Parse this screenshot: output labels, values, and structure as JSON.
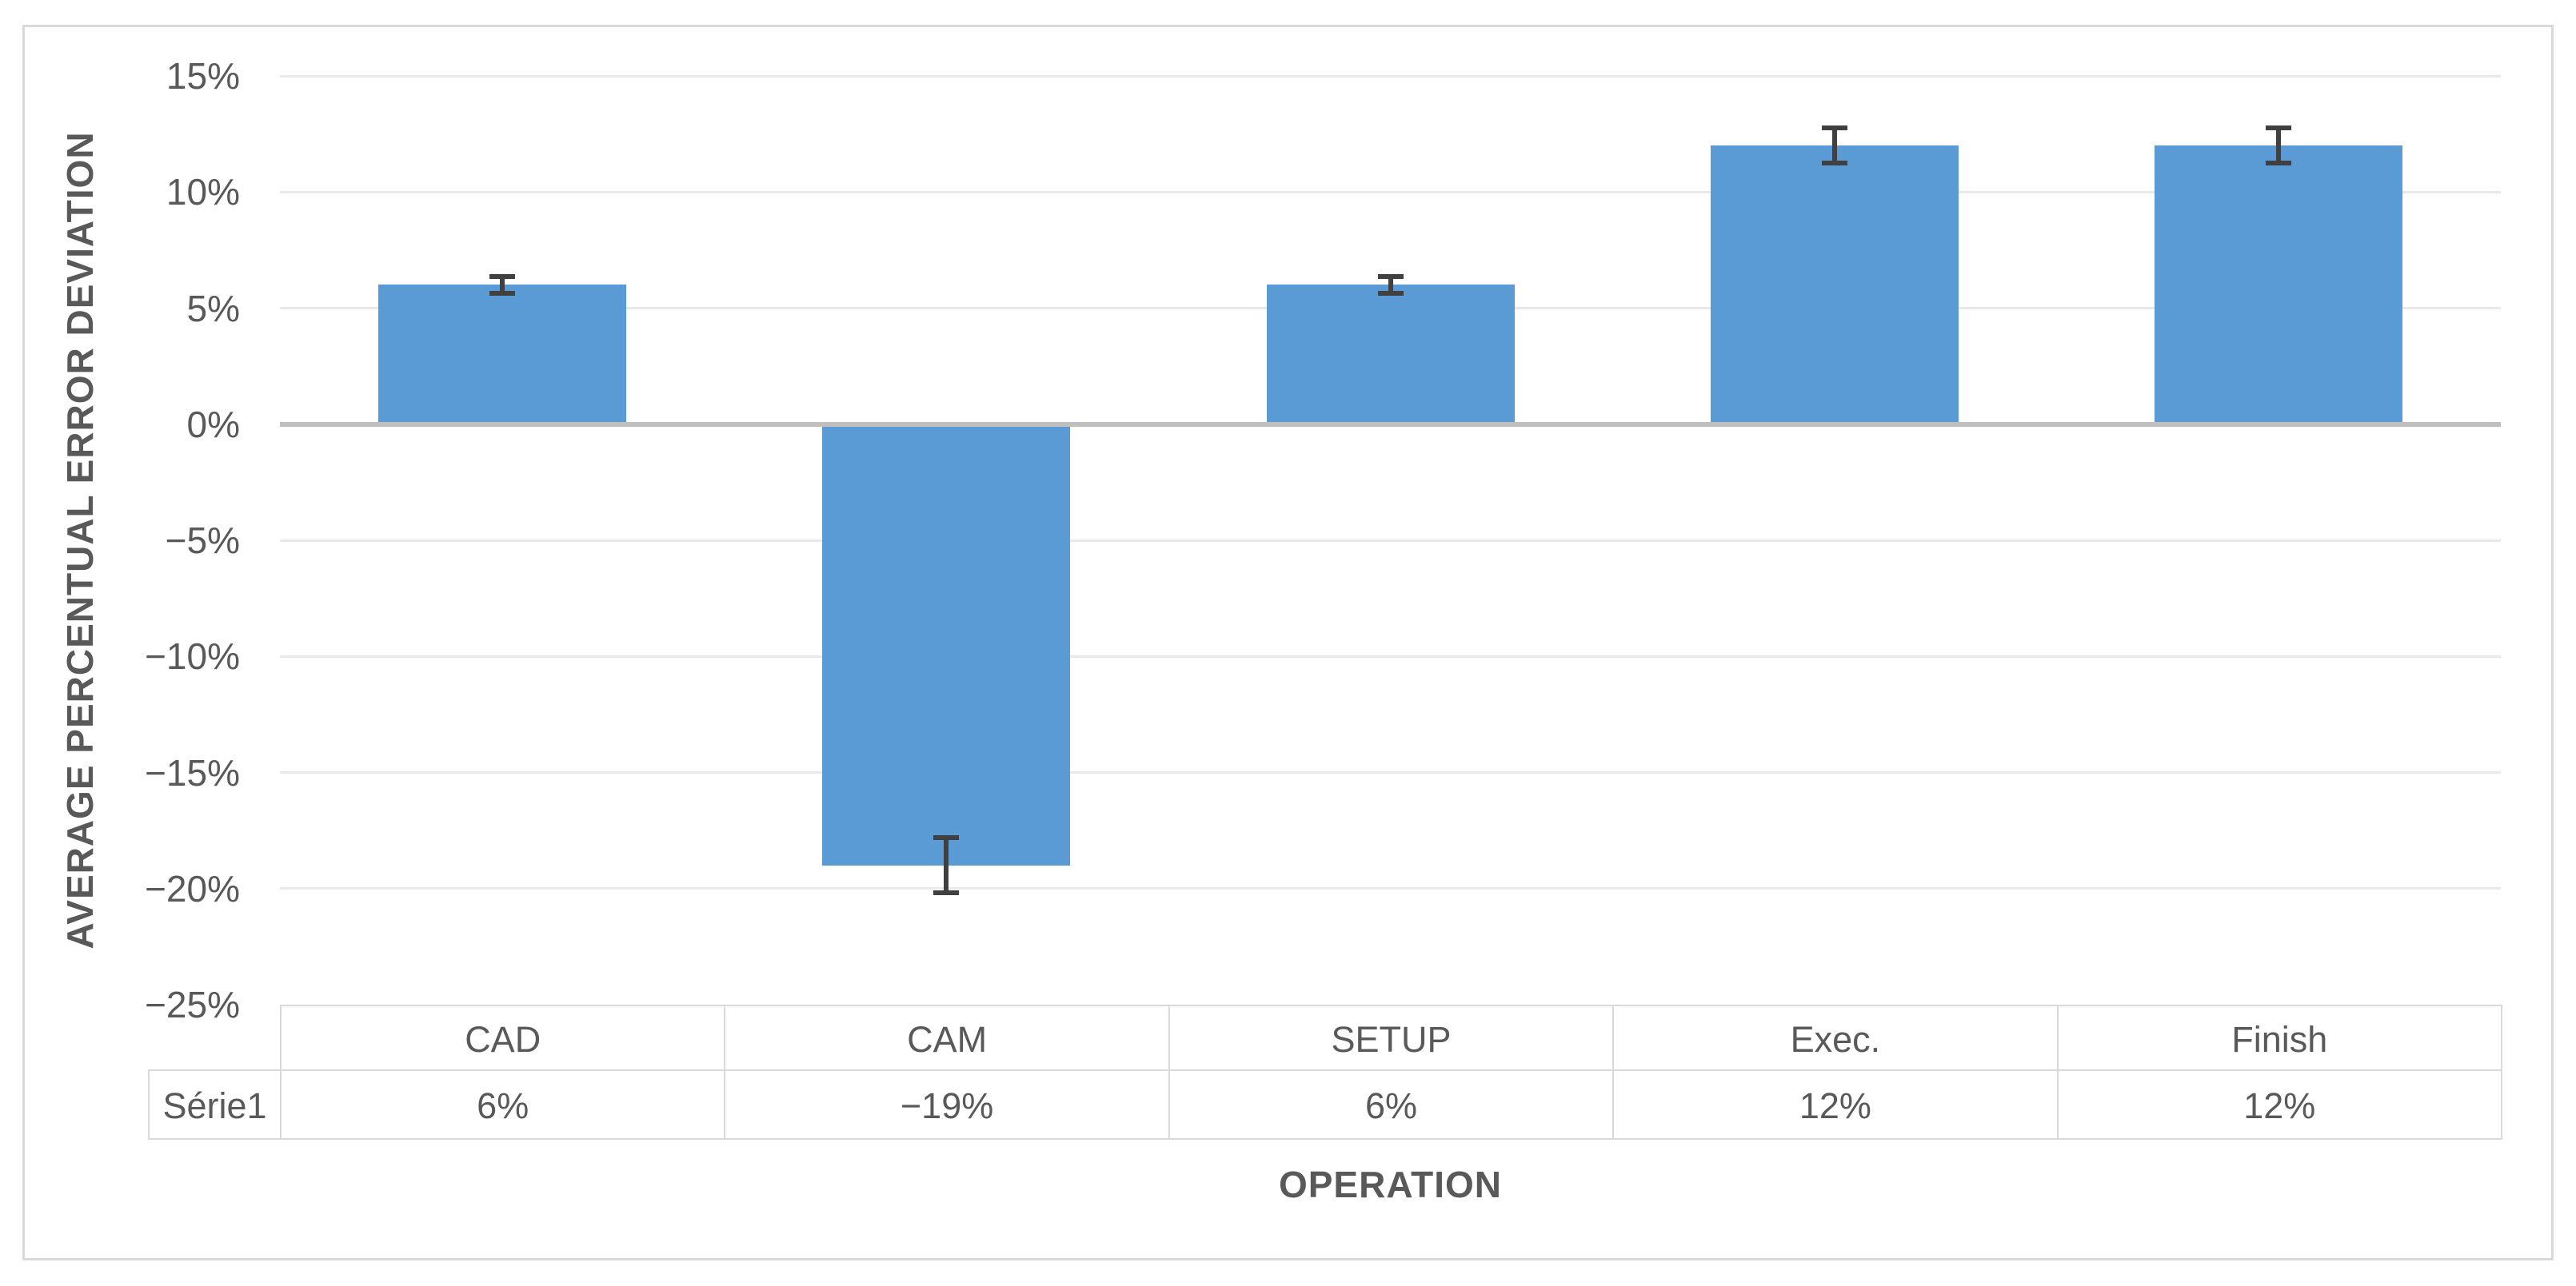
{
  "chart_data": {
    "type": "bar",
    "title": "",
    "categories": [
      "CAD",
      "CAM",
      "SETUP",
      "Exec.",
      "Finish"
    ],
    "series": [
      {
        "name": "Série1",
        "values": [
          6,
          -19,
          6,
          12,
          12
        ],
        "value_labels": [
          "6%",
          "−19%",
          "6%",
          "12%",
          "12%"
        ],
        "errors": [
          0.45,
          1.3,
          0.45,
          0.85,
          0.85
        ]
      }
    ],
    "xlabel": "OPERATION",
    "ylabel": "AVERAGE PERCENTUAL ERROR DEVIATION",
    "ylim": [
      -25,
      15
    ],
    "yticks": [
      15,
      10,
      5,
      0,
      -5,
      -10,
      -15,
      -20,
      -25
    ],
    "ytick_labels": [
      "15%",
      "10%",
      "5%",
      "0%",
      "−5%",
      "−10%",
      "−15%",
      "−20%",
      "−25%"
    ],
    "grid": true,
    "legend_position": "none",
    "data_table_shown": true,
    "colors": {
      "bar": "#5B9BD5",
      "error_bar": "#404040",
      "gridline": "#E9E9E9",
      "zero_axis_line": "#BFBFBF",
      "table_border": "#D9D9D9",
      "chart_border": "#D9D9D9",
      "text": "#595959"
    }
  }
}
